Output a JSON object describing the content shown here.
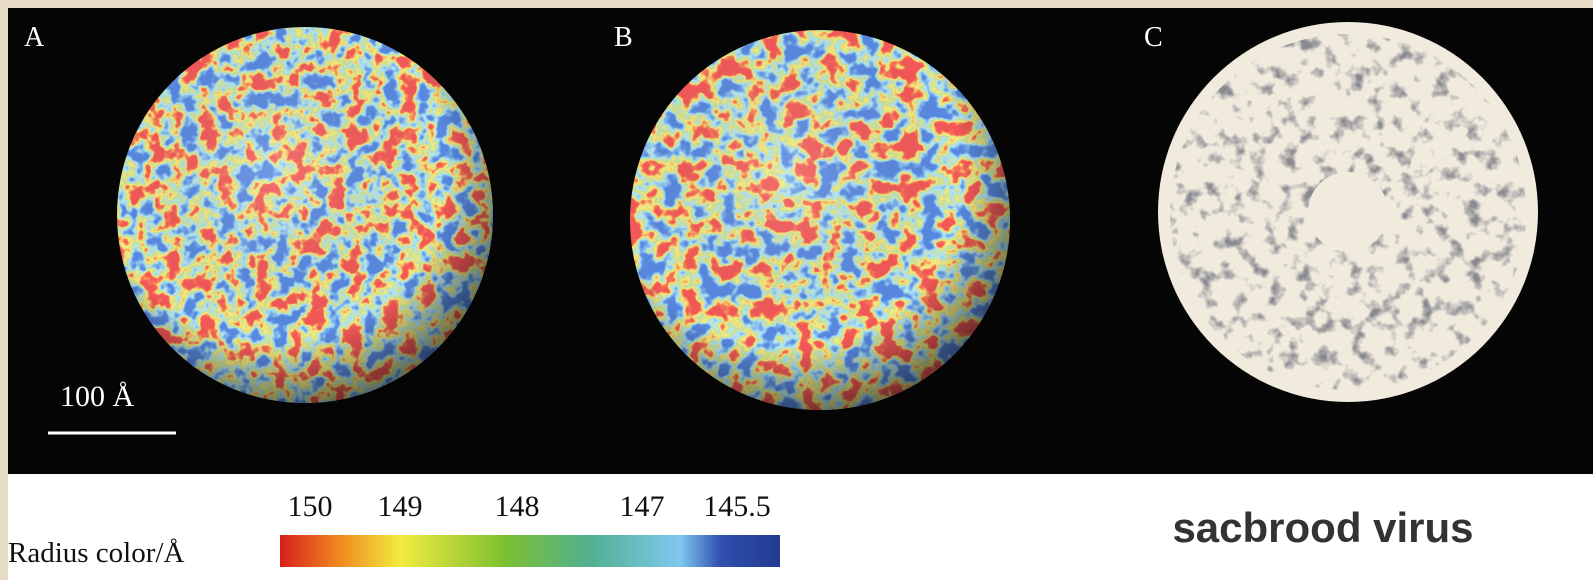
{
  "panels": [
    {
      "label": "A"
    },
    {
      "label": "B"
    },
    {
      "label": "C"
    }
  ],
  "scale_bar": "100 Å",
  "colorbar": {
    "title": "Radius color/Å",
    "ticks": [
      "150",
      "149",
      "148",
      "147",
      "145.5"
    ]
  },
  "caption": "sacbrood virus"
}
